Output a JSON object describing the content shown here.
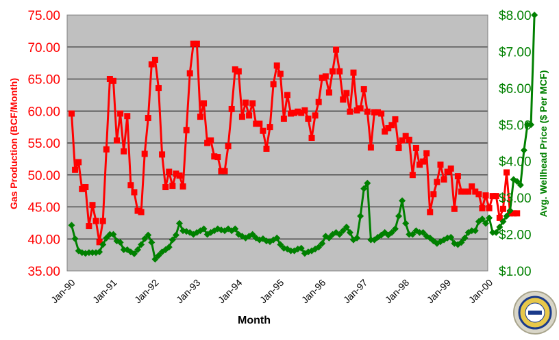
{
  "chart_data": {
    "type": "line",
    "title": "",
    "xlabel": "Month",
    "ylabel_left": "Gas Production (BCF/Month)",
    "ylabel_right": "Avg. Wellhead Price ($ Per MCF)",
    "x_tick_labels": [
      "Jan-90",
      "Jan-91",
      "Jan-92",
      "Jan-93",
      "Jan-94",
      "Jan-95",
      "Jan-96",
      "Jan-97",
      "Jan-98",
      "Jan-99",
      "Jan-00"
    ],
    "ylim_left": [
      35,
      75
    ],
    "ylim_right": [
      1,
      8
    ],
    "left_tick_labels": [
      "35.00",
      "40.00",
      "45.00",
      "50.00",
      "55.00",
      "60.00",
      "65.00",
      "70.00",
      "75.00"
    ],
    "right_tick_labels": [
      "$1.00",
      "$2.00",
      "$3.00",
      "$4.00",
      "$5.00",
      "$6.00",
      "$7.00",
      "$8.00"
    ],
    "grid": true,
    "legend": "none",
    "background_color": "#c0c0c0",
    "series": [
      {
        "axis": "left",
        "marker": "square",
        "color": "#ff0000",
        "values": [
          59.6,
          50.8,
          52.0,
          47.8,
          48.1,
          42.0,
          45.3,
          42.8,
          39.5,
          42.8,
          54.0,
          65.0,
          64.7,
          55.4,
          59.6,
          53.7,
          59.2,
          48.4,
          47.3,
          44.4,
          44.2,
          53.3,
          58.9,
          67.3,
          68.0,
          63.6,
          53.2,
          48.1,
          50.5,
          48.3,
          50.2,
          49.9,
          48.2,
          57.0,
          65.9,
          70.5,
          70.5,
          59.1,
          61.2,
          55.0,
          55.4,
          52.9,
          52.8,
          50.6,
          50.6,
          54.5,
          60.3,
          66.5,
          66.2,
          59.1,
          61.3,
          59.3,
          61.2,
          58.0,
          58.0,
          56.9,
          54.1,
          57.5,
          64.2,
          67.1,
          65.8,
          58.8,
          62.5,
          59.6,
          59.7,
          59.9,
          59.7,
          60.1,
          58.8,
          55.8,
          59.3,
          61.4,
          65.2,
          65.4,
          62.9,
          66.2,
          69.6,
          66.2,
          61.8,
          62.8,
          59.9,
          66.0,
          60.1,
          60.4,
          63.4,
          59.9,
          54.3,
          59.8,
          59.8,
          59.6,
          56.8,
          57.3,
          57.8,
          58.7,
          54.2,
          55.4,
          56.1,
          55.5,
          50.0,
          54.2,
          51.6,
          52.1,
          53.4,
          44.2,
          47.0,
          48.9,
          51.6,
          49.3,
          50.5,
          51.0,
          44.7,
          49.8,
          47.4,
          47.4,
          47.4,
          48.2,
          47.4,
          47.0,
          44.8,
          46.8,
          44.8,
          46.7,
          46.7,
          43.3,
          44.7,
          50.4,
          44.0,
          44.0,
          44.0
        ]
      },
      {
        "axis": "right",
        "marker": "diamond",
        "color": "#008000",
        "values": [
          2.25,
          1.88,
          1.55,
          1.5,
          1.48,
          1.5,
          1.5,
          1.5,
          1.52,
          1.72,
          1.9,
          2.0,
          2.0,
          1.82,
          1.78,
          1.58,
          1.58,
          1.52,
          1.47,
          1.58,
          1.72,
          1.88,
          1.98,
          1.78,
          1.32,
          1.42,
          1.52,
          1.58,
          1.65,
          1.85,
          1.98,
          2.3,
          2.1,
          2.08,
          2.05,
          2.0,
          2.05,
          2.1,
          2.15,
          2.0,
          2.05,
          2.1,
          2.15,
          2.12,
          2.1,
          2.15,
          2.1,
          2.15,
          2.0,
          1.95,
          1.9,
          1.95,
          2.0,
          1.9,
          1.85,
          1.88,
          1.82,
          1.8,
          1.85,
          1.9,
          1.72,
          1.62,
          1.6,
          1.55,
          1.55,
          1.6,
          1.62,
          1.48,
          1.52,
          1.55,
          1.6,
          1.65,
          1.75,
          1.95,
          1.9,
          2.0,
          2.05,
          2.0,
          2.1,
          2.2,
          2.05,
          1.85,
          1.9,
          2.5,
          3.25,
          3.4,
          1.85,
          1.85,
          1.92,
          1.98,
          2.05,
          1.98,
          2.05,
          2.15,
          2.5,
          2.92,
          2.3,
          2.0,
          2.0,
          2.1,
          2.05,
          2.05,
          1.95,
          1.9,
          1.82,
          1.75,
          1.8,
          1.85,
          1.9,
          1.92,
          1.75,
          1.72,
          1.78,
          1.9,
          2.05,
          2.1,
          2.1,
          2.35,
          2.42,
          2.3,
          2.45,
          2.05,
          2.05,
          2.2,
          2.35,
          2.5,
          2.65,
          3.5,
          3.45,
          3.35,
          4.3,
          5.0,
          5.0,
          8.0
        ]
      }
    ]
  }
}
